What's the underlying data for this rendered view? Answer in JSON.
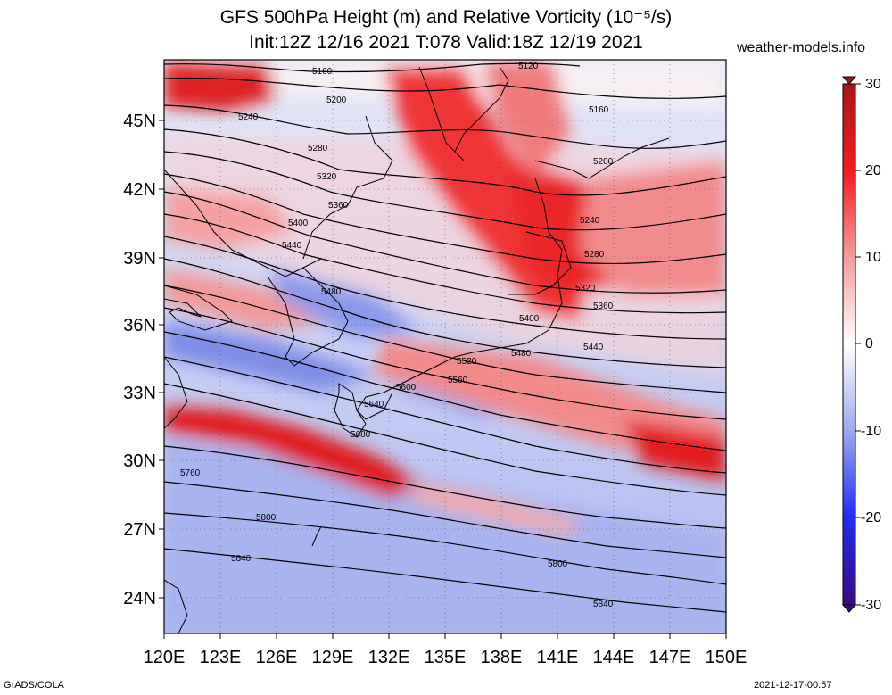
{
  "header": {
    "title_line1": "GFS 500hPa Height (m) and Relative Vorticity (10⁻⁵/s)",
    "title_line2": "Init:12Z 12/16 2021 T:078 Valid:18Z 12/19 2021",
    "site": "weather-models.info"
  },
  "footer": {
    "software": "GrADS/COLA",
    "timestamp": "2021-12-17-00:57"
  },
  "map": {
    "lat_labels": [
      "45N",
      "42N",
      "39N",
      "36N",
      "33N",
      "30N",
      "27N",
      "24N"
    ],
    "lon_labels": [
      "120E",
      "123E",
      "126E",
      "129E",
      "132E",
      "135E",
      "138E",
      "141E",
      "144E",
      "147E",
      "150E"
    ],
    "contour_labels": [
      "5120",
      "5160",
      "5160",
      "5200",
      "5200",
      "5240",
      "5240",
      "5280",
      "5280",
      "5320",
      "5320",
      "5360",
      "5360",
      "5400",
      "5400",
      "5440",
      "5440",
      "5480",
      "5480",
      "5520",
      "5560",
      "5600",
      "5640",
      "5680",
      "5760",
      "5800",
      "5800",
      "5840",
      "5840"
    ]
  },
  "colorbar": {
    "ticks": [
      "30",
      "20",
      "10",
      "0",
      "-10",
      "-20",
      "-30"
    ],
    "colors": {
      "strong_positive": "#b31c1c",
      "positive": "#f03a3a",
      "weak_positive": "#f7b6b6",
      "zero": "#ffffff",
      "weak_negative": "#b8c2f2",
      "negative": "#2a3cf0",
      "strong_negative": "#3a0a8a"
    }
  }
}
